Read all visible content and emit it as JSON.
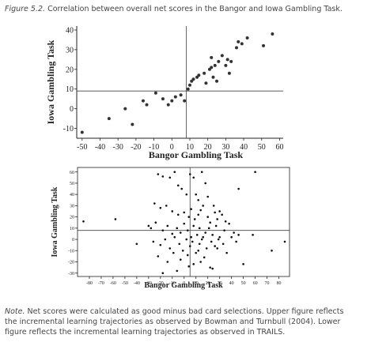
{
  "figure_label": "Figure 5.2.",
  "caption": "Correlation between overall net scores in the Bangor and Iowa Gambling Task.",
  "note_label": "Note.",
  "note_lines": [
    "Net scores were calculated as good minus bad card selections. Upper figure reflects",
    "the incremental learning trajectories as observed by Bowman and Turnbull (2004). Lower",
    "figure reflects the incremental learning trajectories as observed in TRAILS."
  ],
  "chart_data": [
    {
      "type": "scatter",
      "xlabel": "Bangor Gambling Task",
      "ylabel": "Iowa Gambling Task",
      "color": "#333333",
      "x": [
        -50,
        -35,
        -26,
        -22,
        -16,
        -14,
        -9,
        -5,
        -2,
        0,
        2,
        5,
        7,
        9,
        10,
        11,
        12,
        14,
        15,
        18,
        19,
        21,
        22,
        22,
        23,
        24,
        25,
        26,
        28,
        30,
        31,
        32,
        33,
        36,
        37,
        39,
        42,
        51,
        56
      ],
      "values": [
        -12,
        -5,
        0,
        -8,
        4,
        2,
        8,
        5,
        2,
        4,
        6,
        7,
        4,
        10,
        12,
        14,
        15,
        16,
        17,
        18,
        13,
        20,
        26,
        21,
        16,
        22,
        14,
        24,
        27,
        22,
        25,
        18,
        24,
        31,
        34,
        33,
        36,
        32,
        38
      ],
      "xlim": [
        -53,
        62
      ],
      "ylim": [
        -15,
        42
      ],
      "xticks": [
        -50,
        -40,
        -30,
        -20,
        -10,
        0,
        10,
        20,
        30,
        40,
        50,
        60
      ],
      "yticks": [
        -10,
        0,
        10,
        20,
        30,
        40
      ],
      "reference_lines": {
        "x": 8,
        "y": 9
      }
    },
    {
      "type": "scatter",
      "xlabel": "Bangor Gambling Task",
      "ylabel": "Iowa Gambling Task",
      "color": "#111111",
      "x": [
        -85,
        -58,
        -22,
        -18,
        -12,
        -8,
        -5,
        -2,
        2,
        5,
        8,
        10,
        12,
        15,
        18,
        20,
        25,
        30,
        -25,
        -20,
        -15,
        -10,
        -5,
        0,
        4,
        6,
        9,
        12,
        14,
        16,
        20,
        22,
        26,
        28,
        32,
        35,
        -30,
        -28,
        -24,
        -18,
        -14,
        -10,
        -6,
        -3,
        0,
        3,
        6,
        8,
        11,
        13,
        15,
        18,
        21,
        24,
        27,
        30,
        34,
        38,
        42,
        46,
        -26,
        -20,
        -16,
        -12,
        -8,
        -4,
        -1,
        2,
        5,
        7,
        10,
        13,
        16,
        19,
        23,
        26,
        29,
        33,
        40,
        44,
        -22,
        -14,
        -9,
        -3,
        3,
        8,
        12,
        17,
        22,
        28,
        36,
        -18,
        -6,
        4,
        14,
        24,
        50,
        58,
        74,
        85,
        60,
        46,
        -40
      ],
      "values": [
        16,
        18,
        58,
        56,
        55,
        60,
        48,
        45,
        40,
        58,
        55,
        40,
        35,
        60,
        50,
        38,
        30,
        25,
        32,
        28,
        30,
        25,
        22,
        24,
        20,
        27,
        18,
        22,
        26,
        30,
        20,
        15,
        24,
        18,
        22,
        16,
        12,
        10,
        15,
        8,
        12,
        5,
        10,
        6,
        14,
        8,
        2,
        12,
        4,
        10,
        0,
        6,
        10,
        4,
        12,
        2,
        8,
        14,
        6,
        4,
        -2,
        -5,
        0,
        -8,
        2,
        -4,
        -10,
        0,
        -6,
        -2,
        -12,
        -4,
        2,
        -8,
        -2,
        -6,
        0,
        -4,
        2,
        -2,
        -15,
        -20,
        -12,
        -18,
        -14,
        -22,
        -10,
        -16,
        -25,
        -8,
        -12,
        -30,
        -28,
        -24,
        -20,
        -26,
        -22,
        4,
        -10,
        -2,
        60,
        45,
        -4
      ],
      "xlim": [
        -90,
        89
      ],
      "ylim": [
        -33,
        64
      ],
      "xticks": [
        -80,
        -70,
        -60,
        -50,
        -40,
        -30,
        -20,
        -10,
        0,
        10,
        20,
        30,
        40,
        50,
        60,
        70,
        80
      ],
      "yticks": [
        -30,
        -20,
        -10,
        0,
        10,
        20,
        30,
        40,
        50,
        60
      ],
      "reference_lines": {
        "x": 5,
        "y": 8
      }
    }
  ]
}
